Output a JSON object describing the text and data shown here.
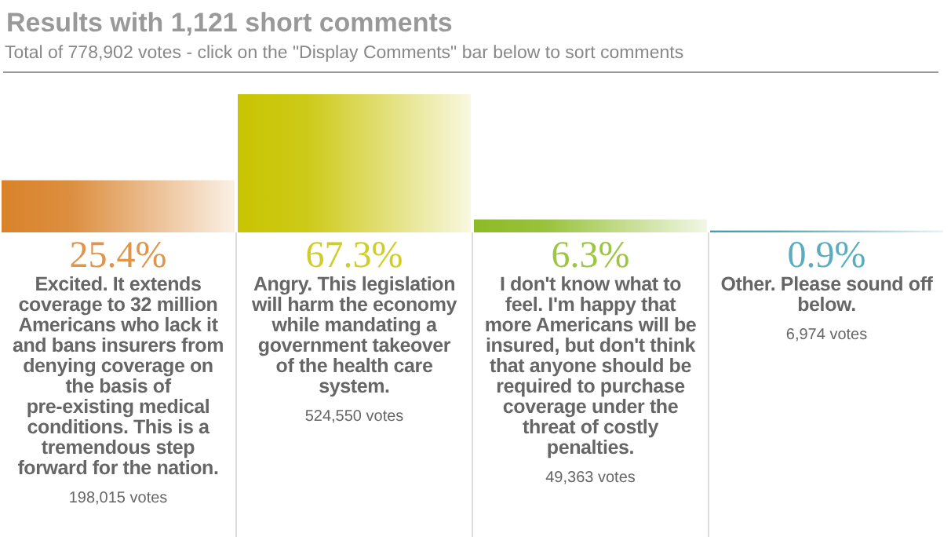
{
  "chart_data": {
    "type": "bar",
    "title": "Results with 1,121 short comments",
    "subtitle": "Total of 778,902 votes - click on the \"Display Comments\" bar below to sort comments",
    "categories": [
      "Excited. It extends coverage to 32 million Americans who lack it and bans insurers from denying coverage on the basis of pre-existing medical conditions. This is a tremendous step forward for the nation.",
      "Angry. This legislation will harm the economy while mandating a government takeover of the health care system.",
      "I don't know what to feel. I'm happy that more Americans will be insured, but don't think that anyone should be required to purchase coverage under the threat of costly penalties.",
      "Other. Please sound off below."
    ],
    "values": [
      25.4,
      67.3,
      6.3,
      0.9
    ],
    "colors": [
      "#d9822b",
      "#c8c400",
      "#8dbb25",
      "#3a9fb5"
    ],
    "value_labels": [
      "25.4%",
      "67.3%",
      "6.3%",
      "0.9%"
    ],
    "annotations": [
      "198,015 votes",
      "524,550 votes",
      "49,363 votes",
      "6,974 votes"
    ]
  }
}
